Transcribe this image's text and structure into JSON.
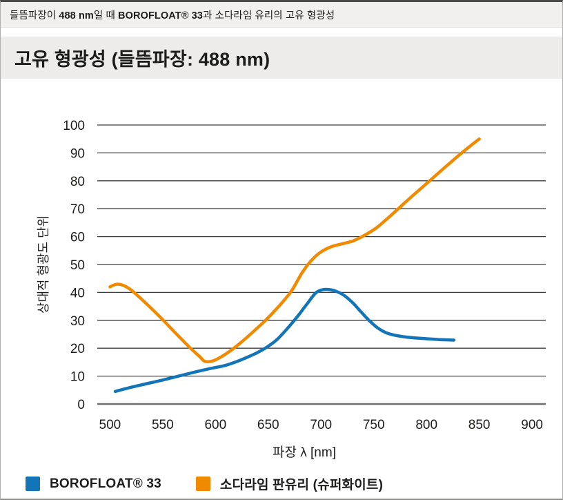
{
  "caption": {
    "segments": [
      {
        "text": "들뜸파장이 ",
        "bold": false
      },
      {
        "text": "488 nm",
        "bold": true
      },
      {
        "text": "일 때 ",
        "bold": false
      },
      {
        "text": "BOROFLOAT® 33",
        "bold": true
      },
      {
        "text": "과 소다라임 유리의 고유 형광성",
        "bold": false
      }
    ]
  },
  "title": "고유 형광성 (들뜸파장: 488 nm)",
  "chart_data": {
    "type": "line",
    "title": "고유 형광성 (들뜸파장: 488 nm)",
    "xlabel": "파장 λ [nm]",
    "ylabel": "상대적 형광도 단위",
    "xlim": [
      488,
      913
    ],
    "ylim": [
      0,
      100
    ],
    "x_ticks": [
      500,
      550,
      600,
      650,
      700,
      750,
      800,
      850,
      900
    ],
    "y_ticks": [
      0,
      10,
      20,
      30,
      40,
      50,
      60,
      70,
      80,
      90,
      100
    ],
    "grid": "horizontal",
    "legend_position": "bottom",
    "series": [
      {
        "name": "BOROFLOAT® 33",
        "color": "#1375b7",
        "points": [
          [
            505,
            4.5
          ],
          [
            520,
            6
          ],
          [
            535,
            7.3
          ],
          [
            550,
            8.6
          ],
          [
            565,
            10
          ],
          [
            580,
            11.4
          ],
          [
            595,
            12.7
          ],
          [
            608,
            13.7
          ],
          [
            618,
            14.9
          ],
          [
            628,
            16.4
          ],
          [
            638,
            18.1
          ],
          [
            648,
            20.2
          ],
          [
            658,
            23
          ],
          [
            668,
            27
          ],
          [
            678,
            31.5
          ],
          [
            687,
            36
          ],
          [
            695,
            39.8
          ],
          [
            702,
            41
          ],
          [
            708,
            41
          ],
          [
            715,
            40.3
          ],
          [
            722,
            38.9
          ],
          [
            730,
            36.3
          ],
          [
            738,
            33
          ],
          [
            746,
            29.8
          ],
          [
            754,
            27.2
          ],
          [
            762,
            25.5
          ],
          [
            772,
            24.5
          ],
          [
            785,
            23.8
          ],
          [
            800,
            23.4
          ],
          [
            812,
            23.1
          ],
          [
            826,
            22.9
          ]
        ]
      },
      {
        "name": "소다라임 판유리 (슈퍼화이트)",
        "color": "#f08a00",
        "points": [
          [
            500,
            42
          ],
          [
            506,
            42.9
          ],
          [
            512,
            42.6
          ],
          [
            520,
            40.9
          ],
          [
            533,
            36.5
          ],
          [
            548,
            31
          ],
          [
            562,
            25.5
          ],
          [
            575,
            20.5
          ],
          [
            585,
            17
          ],
          [
            590,
            15.3
          ],
          [
            597,
            15.4
          ],
          [
            605,
            16.8
          ],
          [
            615,
            19.3
          ],
          [
            625,
            22.3
          ],
          [
            636,
            26
          ],
          [
            648,
            30.2
          ],
          [
            660,
            35
          ],
          [
            672,
            40.5
          ],
          [
            682,
            47
          ],
          [
            691,
            51.5
          ],
          [
            700,
            54.5
          ],
          [
            710,
            56.4
          ],
          [
            720,
            57.4
          ],
          [
            730,
            58.4
          ],
          [
            740,
            60.2
          ],
          [
            752,
            63
          ],
          [
            766,
            67.5
          ],
          [
            782,
            73
          ],
          [
            800,
            79
          ],
          [
            818,
            85
          ],
          [
            834,
            90.2
          ],
          [
            850,
            95
          ]
        ]
      }
    ]
  }
}
